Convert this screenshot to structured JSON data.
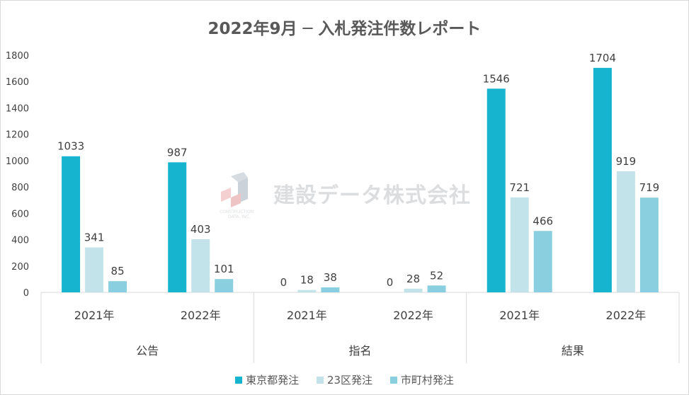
{
  "title": "2022年9月 ─ 入札発注件数レポート",
  "watermark": {
    "name": "建設データ株式会社",
    "sub1": "CONSTRUCTION",
    "sub2": "DATA, INC."
  },
  "colors": {
    "tokyo": "#17b4cf",
    "ku23": "#c2e3e9",
    "city": "#8acfdf",
    "axis": "#d9d9d9",
    "text": "#404040"
  },
  "legend": [
    {
      "label": "東京都発注",
      "color": "#17b4cf"
    },
    {
      "label": "23区発注",
      "color": "#c2e3e9"
    },
    {
      "label": "市町村発注",
      "color": "#8acfdf"
    }
  ],
  "chart_data": {
    "type": "bar",
    "title": "2022年9月 ─ 入札発注件数レポート",
    "groups": [
      {
        "name": "公告",
        "years": [
          "2021年",
          "2022年"
        ]
      },
      {
        "name": "指名",
        "years": [
          "2021年",
          "2022年"
        ]
      },
      {
        "name": "結果",
        "years": [
          "2021年",
          "2022年"
        ]
      }
    ],
    "categories": [
      "公告 2021年",
      "公告 2022年",
      "指名 2021年",
      "指名 2022年",
      "結果 2021年",
      "結果 2022年"
    ],
    "series": [
      {
        "name": "東京都発注",
        "values": [
          1033,
          987,
          0,
          0,
          1546,
          1704
        ]
      },
      {
        "name": "23区発注",
        "values": [
          341,
          403,
          18,
          28,
          721,
          919
        ]
      },
      {
        "name": "市町村発注",
        "values": [
          85,
          101,
          38,
          52,
          466,
          719
        ]
      }
    ],
    "yticks": [
      0,
      200,
      400,
      600,
      800,
      1000,
      1200,
      1400,
      1600,
      1800
    ],
    "ylim": [
      0,
      1800
    ],
    "grid": false,
    "legend_position": "bottom",
    "data_labels": true
  }
}
